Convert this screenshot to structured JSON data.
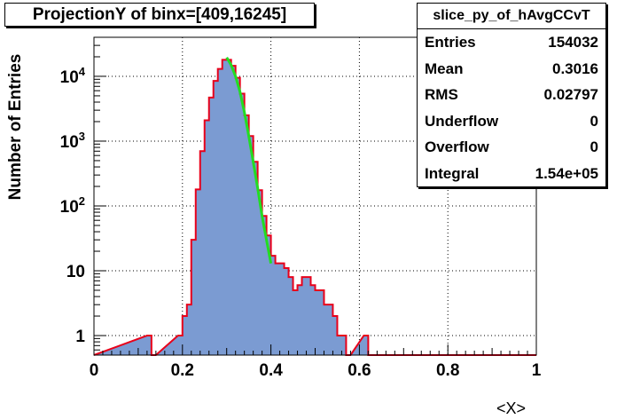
{
  "title": "ProjectionY of binx=[409,16245]",
  "stats": {
    "name": "slice_py_of_hAvgCCvT",
    "rows": [
      {
        "label": "Entries",
        "value": "154032"
      },
      {
        "label": "Mean",
        "value": "0.3016"
      },
      {
        "label": "RMS",
        "value": "0.02797"
      },
      {
        "label": "Underflow",
        "value": "0"
      },
      {
        "label": "Overflow",
        "value": "0"
      },
      {
        "label": "Integral",
        "value": "1.54e+05"
      }
    ]
  },
  "colors": {
    "fill": "#7b9bd2",
    "line": "#e8001a",
    "fit": "#22dd22",
    "grid": "#000000"
  },
  "chart_data": {
    "type": "histogram",
    "title": "ProjectionY of binx=[409,16245]",
    "xlabel": "<X>",
    "ylabel": "Number of Entries",
    "xlim": [
      0,
      1
    ],
    "ylim": [
      0.5,
      40000
    ],
    "yscale": "log",
    "grid": true,
    "legend": "stats-box top-right",
    "xticks": [
      0,
      0.2,
      0.4,
      0.6,
      0.8,
      1
    ],
    "xtick_labels": [
      "0",
      "0.2",
      "0.4",
      "0.6",
      "0.8",
      "1"
    ],
    "yticks": [
      1,
      10,
      100,
      1000,
      10000
    ],
    "ytick_labels": [
      "1",
      "10",
      "10^2",
      "10^3",
      "10^4"
    ],
    "bin_width": 0.01,
    "bin_low_edges": [
      0.12,
      0.13,
      0.19,
      0.2,
      0.21,
      0.22,
      0.23,
      0.24,
      0.25,
      0.26,
      0.27,
      0.28,
      0.29,
      0.3,
      0.31,
      0.32,
      0.33,
      0.34,
      0.35,
      0.36,
      0.37,
      0.38,
      0.39,
      0.4,
      0.41,
      0.42,
      0.43,
      0.44,
      0.45,
      0.46,
      0.47,
      0.48,
      0.49,
      0.5,
      0.51,
      0.52,
      0.53,
      0.54,
      0.55,
      0.56,
      0.57,
      0.61,
      0.62
    ],
    "counts": [
      1,
      0,
      1,
      2,
      3,
      30,
      180,
      700,
      2100,
      4700,
      8500,
      13000,
      18000,
      18000,
      14500,
      9500,
      5400,
      2500,
      1200,
      480,
      175,
      70,
      35,
      17,
      13,
      13,
      11,
      8,
      5,
      6,
      8,
      8,
      6,
      5,
      5,
      3,
      3,
      2,
      1,
      1,
      0,
      1,
      0
    ],
    "fit": {
      "name": "gaus",
      "x": [
        0.3,
        0.31,
        0.32,
        0.33,
        0.34,
        0.35,
        0.36,
        0.37,
        0.38,
        0.39,
        0.4
      ],
      "y": [
        19500,
        15000,
        10000,
        5800,
        2800,
        1200,
        480,
        190,
        70,
        30,
        13
      ]
    }
  }
}
